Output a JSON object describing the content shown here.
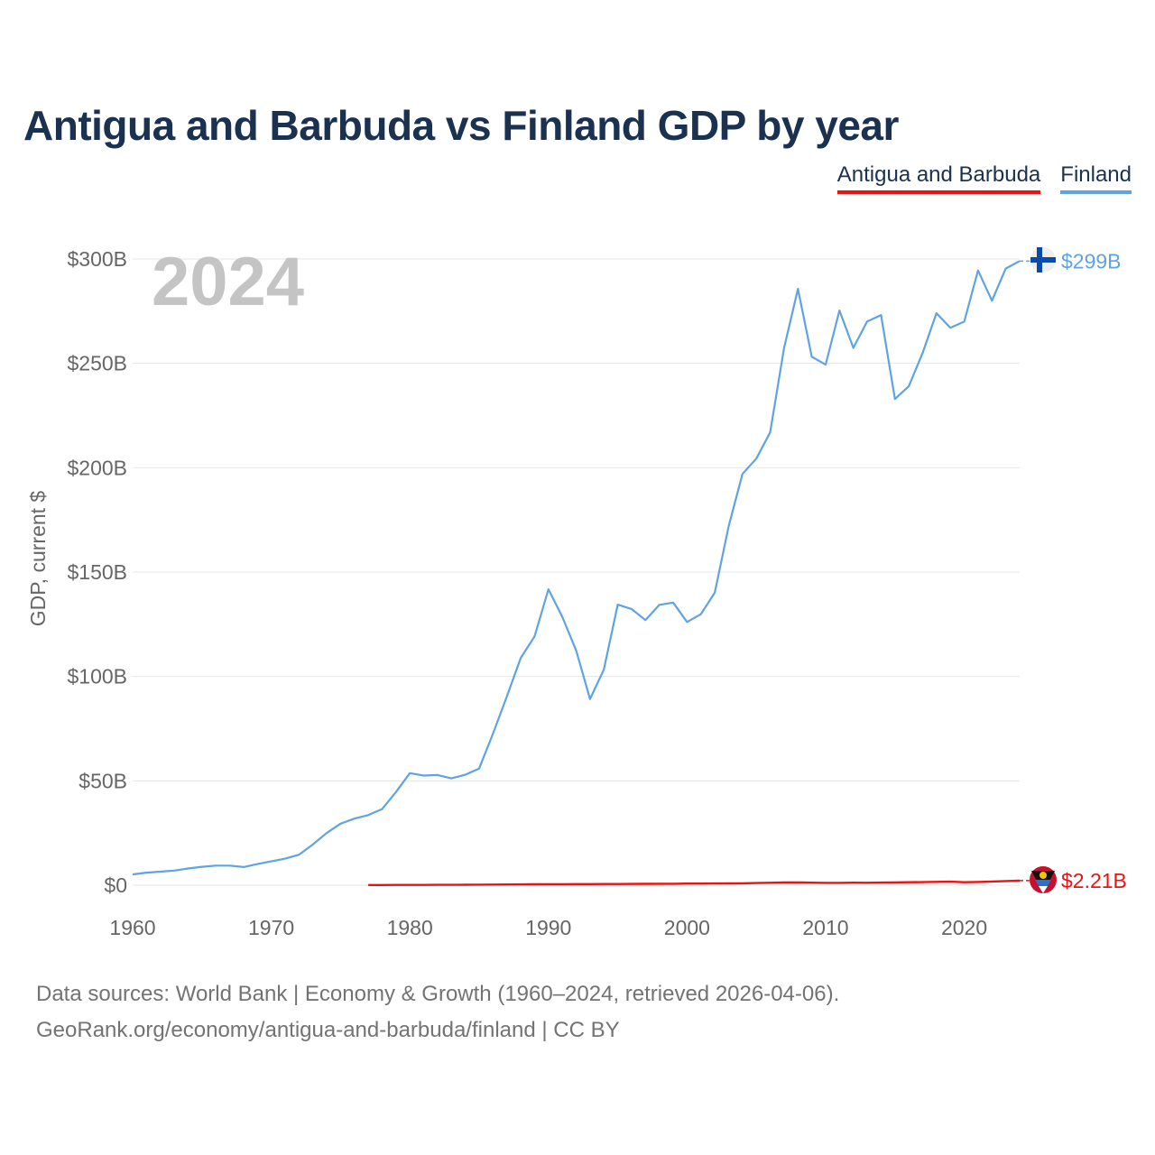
{
  "title": "Antigua and Barbuda vs Finland GDP by year",
  "legend": {
    "antigua": "Antigua and Barbuda",
    "finland": "Finland"
  },
  "colors": {
    "antigua": "#ee1111",
    "finland": "#5fa3e3",
    "title": "#1a3150",
    "axis_text": "#666666",
    "year_watermark": "#c4c4c4"
  },
  "source_lines": [
    "Data sources: World Bank | Economy & Growth (1960–2024, retrieved 2026-04-06).",
    "GeoRank.org/economy/antigua-and-barbuda/finland | CC BY"
  ],
  "chart_data": {
    "type": "line",
    "title": "Antigua and Barbuda vs Finland GDP by year",
    "year_label": "2024",
    "ylabel": "GDP, current $",
    "xlabel": "",
    "xlim": [
      1960,
      2024
    ],
    "ylim": [
      0,
      300
    ],
    "y_unit": "billion US$",
    "x_ticks": [
      1960,
      1970,
      1980,
      1990,
      2000,
      2010,
      2020
    ],
    "y_ticks": [
      {
        "value": 0,
        "label": "$0"
      },
      {
        "value": 50,
        "label": "$50B"
      },
      {
        "value": 100,
        "label": "$100B"
      },
      {
        "value": 150,
        "label": "$150B"
      },
      {
        "value": 200,
        "label": "$200B"
      },
      {
        "value": 250,
        "label": "$250B"
      },
      {
        "value": 300,
        "label": "$300B"
      }
    ],
    "grid": true,
    "series": [
      {
        "name": "Finland",
        "end_label": "$299B",
        "x": [
          1960,
          1961,
          1962,
          1963,
          1964,
          1965,
          1966,
          1967,
          1968,
          1969,
          1970,
          1971,
          1972,
          1973,
          1974,
          1975,
          1976,
          1977,
          1978,
          1979,
          1980,
          1981,
          1982,
          1983,
          1984,
          1985,
          1986,
          1987,
          1988,
          1989,
          1990,
          1991,
          1992,
          1993,
          1994,
          1995,
          1996,
          1997,
          1998,
          1999,
          2000,
          2001,
          2002,
          2003,
          2004,
          2005,
          2006,
          2007,
          2008,
          2009,
          2010,
          2011,
          2012,
          2013,
          2014,
          2015,
          2016,
          2017,
          2018,
          2019,
          2020,
          2021,
          2022,
          2023,
          2024
        ],
        "values": [
          5.2,
          6.0,
          6.5,
          7.0,
          8.0,
          8.8,
          9.4,
          9.4,
          8.7,
          10.1,
          11.4,
          12.7,
          14.6,
          19.5,
          25.0,
          29.5,
          31.9,
          33.6,
          36.5,
          44.6,
          53.7,
          52.5,
          52.8,
          51.2,
          52.9,
          55.9,
          72.6,
          90.4,
          108.9,
          119.2,
          141.8,
          128.6,
          112.5,
          89.2,
          103.3,
          134.4,
          132.3,
          127.0,
          134.3,
          135.4,
          126.1,
          129.8,
          140.1,
          171.9,
          197.0,
          204.4,
          216.9,
          257.3,
          285.7,
          253.2,
          249.4,
          275.3,
          257.4,
          270.1,
          273.1,
          232.9,
          239.0,
          255.0,
          274.0,
          267.0,
          270.0,
          294.5,
          280.0,
          295.4,
          299.0
        ]
      },
      {
        "name": "Antigua and Barbuda",
        "end_label": "$2.21B",
        "x": [
          1977,
          1978,
          1979,
          1980,
          1981,
          1982,
          1983,
          1984,
          1985,
          1986,
          1987,
          1988,
          1989,
          1990,
          1991,
          1992,
          1993,
          1994,
          1995,
          1996,
          1997,
          1998,
          1999,
          2000,
          2001,
          2002,
          2003,
          2004,
          2005,
          2006,
          2007,
          2008,
          2009,
          2010,
          2011,
          2012,
          2013,
          2014,
          2015,
          2016,
          2017,
          2018,
          2019,
          2020,
          2021,
          2022,
          2023,
          2024
        ],
        "values": [
          0.08,
          0.09,
          0.11,
          0.13,
          0.15,
          0.16,
          0.18,
          0.21,
          0.25,
          0.29,
          0.33,
          0.38,
          0.44,
          0.46,
          0.48,
          0.5,
          0.53,
          0.57,
          0.57,
          0.6,
          0.64,
          0.68,
          0.71,
          0.78,
          0.79,
          0.81,
          0.85,
          0.92,
          1.02,
          1.16,
          1.29,
          1.35,
          1.23,
          1.14,
          1.14,
          1.2,
          1.18,
          1.25,
          1.34,
          1.44,
          1.47,
          1.61,
          1.69,
          1.42,
          1.56,
          1.76,
          2.0,
          2.21
        ]
      }
    ]
  }
}
